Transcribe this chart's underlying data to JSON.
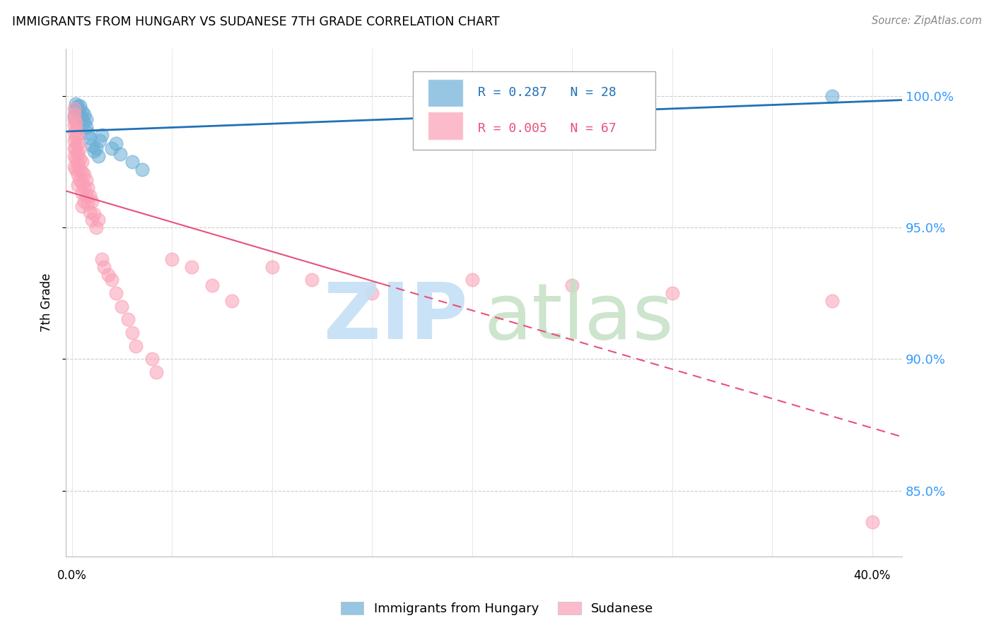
{
  "title": "IMMIGRANTS FROM HUNGARY VS SUDANESE 7TH GRADE CORRELATION CHART",
  "source": "Source: ZipAtlas.com",
  "ylabel": "7th Grade",
  "yticks": [
    85.0,
    90.0,
    95.0,
    100.0
  ],
  "ytick_labels": [
    "85.0%",
    "90.0%",
    "95.0%",
    "100.0%"
  ],
  "ylim": [
    82.5,
    101.8
  ],
  "xlim": [
    -0.003,
    0.415
  ],
  "legend_blue_R": "R = 0.287",
  "legend_blue_N": "N = 28",
  "legend_pink_R": "R = 0.005",
  "legend_pink_N": "N = 67",
  "blue_color": "#6baed6",
  "pink_color": "#fa9fb5",
  "blue_line_color": "#2171b5",
  "pink_line_color": "#e8517a",
  "blue_x": [
    0.001,
    0.002,
    0.002,
    0.003,
    0.003,
    0.004,
    0.004,
    0.005,
    0.005,
    0.006,
    0.006,
    0.007,
    0.007,
    0.008,
    0.009,
    0.01,
    0.011,
    0.012,
    0.013,
    0.014,
    0.015,
    0.02,
    0.022,
    0.024,
    0.03,
    0.035,
    0.2,
    0.38
  ],
  "blue_y": [
    99.2,
    99.5,
    99.7,
    99.4,
    99.6,
    99.3,
    99.6,
    99.1,
    99.4,
    99.0,
    99.3,
    98.8,
    99.1,
    98.6,
    98.4,
    98.1,
    97.9,
    98.0,
    97.7,
    98.3,
    98.5,
    98.0,
    98.2,
    97.8,
    97.5,
    97.2,
    99.5,
    100.0
  ],
  "pink_x": [
    0.001,
    0.001,
    0.001,
    0.001,
    0.001,
    0.001,
    0.001,
    0.001,
    0.001,
    0.002,
    0.002,
    0.002,
    0.002,
    0.002,
    0.002,
    0.003,
    0.003,
    0.003,
    0.003,
    0.003,
    0.003,
    0.004,
    0.004,
    0.004,
    0.004,
    0.005,
    0.005,
    0.005,
    0.005,
    0.005,
    0.006,
    0.006,
    0.006,
    0.007,
    0.007,
    0.008,
    0.008,
    0.009,
    0.009,
    0.01,
    0.01,
    0.011,
    0.012,
    0.013,
    0.015,
    0.016,
    0.018,
    0.02,
    0.022,
    0.025,
    0.028,
    0.03,
    0.032,
    0.04,
    0.042,
    0.05,
    0.06,
    0.07,
    0.08,
    0.1,
    0.12,
    0.15,
    0.2,
    0.25,
    0.3,
    0.38,
    0.4
  ],
  "pink_y": [
    99.5,
    99.3,
    99.1,
    98.9,
    98.6,
    98.3,
    98.0,
    97.7,
    97.3,
    99.0,
    98.7,
    98.4,
    98.0,
    97.6,
    97.2,
    98.5,
    98.2,
    97.8,
    97.4,
    97.0,
    96.6,
    98.0,
    97.6,
    97.2,
    96.8,
    97.5,
    97.1,
    96.7,
    96.3,
    95.8,
    97.0,
    96.5,
    96.0,
    96.8,
    96.2,
    96.5,
    95.9,
    96.2,
    95.6,
    96.0,
    95.3,
    95.5,
    95.0,
    95.3,
    93.8,
    93.5,
    93.2,
    93.0,
    92.5,
    92.0,
    91.5,
    91.0,
    90.5,
    90.0,
    89.5,
    93.8,
    93.5,
    92.8,
    92.2,
    93.5,
    93.0,
    92.5,
    93.0,
    92.8,
    92.5,
    92.2,
    83.8
  ]
}
